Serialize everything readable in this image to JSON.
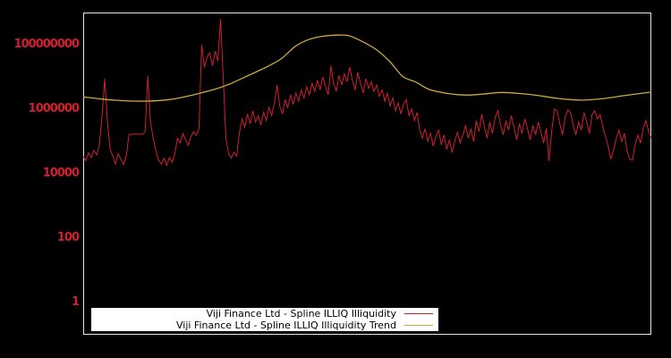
{
  "colors": {
    "background": "#000000",
    "plot_border": "#e6e6e6",
    "series_red": "#d0202f",
    "series_gold": "#cfa93d",
    "tick_label": "#d0202f",
    "legend_background": "#ffffff",
    "legend_text": "#000000"
  },
  "legend": {
    "items": [
      {
        "label": "Viji Finance Ltd - Spline ILLIQ Illiquidity",
        "color": "#d0202f"
      },
      {
        "label": "Viji Finance Ltd - Spline ILLIQ Illiquidity Trend",
        "color": "#cfa93d"
      }
    ]
  },
  "chart_data": {
    "type": "line",
    "title": "",
    "xlabel": "",
    "ylabel": "",
    "grid": false,
    "legend_position": "bottom-center",
    "yaxis": {
      "scale": "log10",
      "ylim": [
        0.1,
        1000000000
      ],
      "ticks": [
        {
          "label": "100000000",
          "value": 100000000
        },
        {
          "label": "1000000",
          "value": 1000000
        },
        {
          "label": "10000",
          "value": 10000
        },
        {
          "label": "100",
          "value": 100
        },
        {
          "label": "1",
          "value": 1
        }
      ]
    },
    "xaxis": {
      "labels": "none",
      "spacing": "uniform"
    },
    "series": [
      {
        "name": "Viji Finance Ltd - Spline ILLIQ Illiquidity",
        "color": "#d0202f",
        "style": "jagged-line",
        "value_encoding": "log10",
        "log10_values": [
          4.53,
          4.4,
          4.65,
          4.5,
          4.72,
          4.58,
          4.9,
          5.8,
          6.94,
          5.6,
          4.75,
          4.55,
          4.3,
          4.62,
          4.45,
          4.28,
          4.55,
          5.22,
          5.22,
          5.23,
          5.22,
          5.23,
          5.22,
          5.3,
          7.03,
          5.6,
          5.1,
          4.7,
          4.42,
          4.3,
          4.48,
          4.25,
          4.5,
          4.35,
          4.6,
          5.1,
          4.95,
          5.25,
          5.05,
          4.88,
          5.15,
          5.3,
          5.18,
          5.4,
          8.0,
          7.3,
          7.62,
          7.75,
          7.35,
          7.8,
          7.5,
          8.8,
          7.0,
          5.1,
          4.62,
          4.48,
          4.66,
          4.55,
          5.25,
          5.7,
          5.45,
          5.85,
          5.55,
          5.95,
          5.6,
          5.8,
          5.5,
          5.9,
          5.65,
          6.05,
          5.8,
          6.2,
          6.75,
          6.1,
          5.85,
          6.3,
          6.05,
          6.45,
          6.15,
          6.5,
          6.25,
          6.6,
          6.35,
          6.7,
          6.45,
          6.8,
          6.55,
          6.9,
          6.6,
          7.0,
          6.7,
          6.45,
          7.35,
          6.8,
          6.55,
          7.05,
          6.75,
          7.1,
          6.85,
          7.3,
          6.9,
          6.6,
          7.15,
          6.8,
          6.5,
          6.95,
          6.65,
          6.85,
          6.55,
          6.75,
          6.4,
          6.6,
          6.25,
          6.5,
          6.1,
          6.35,
          5.95,
          6.2,
          5.85,
          6.15,
          6.3,
          5.8,
          6.0,
          5.65,
          5.9,
          5.35,
          5.1,
          5.4,
          5.0,
          5.25,
          4.85,
          5.15,
          5.35,
          4.9,
          5.2,
          4.75,
          5.05,
          4.65,
          5.0,
          5.3,
          4.95,
          5.2,
          5.5,
          5.1,
          5.4,
          5.0,
          5.65,
          5.3,
          5.85,
          5.45,
          5.1,
          5.6,
          5.25,
          5.75,
          5.95,
          5.5,
          5.2,
          5.65,
          5.35,
          5.8,
          5.45,
          5.05,
          5.55,
          5.25,
          5.7,
          5.4,
          5.05,
          5.5,
          5.2,
          5.6,
          5.3,
          4.95,
          5.4,
          4.4,
          5.3,
          6.0,
          5.95,
          5.55,
          5.2,
          5.75,
          5.98,
          5.9,
          5.5,
          5.2,
          5.6,
          5.35,
          5.9,
          5.6,
          5.25,
          5.83,
          5.95,
          5.7,
          5.83,
          5.45,
          5.15,
          4.85,
          4.45,
          4.75,
          5.1,
          5.35,
          5.0,
          5.25,
          4.7,
          4.45,
          4.42,
          4.9,
          5.2,
          4.95,
          5.4,
          5.65,
          5.3,
          5.1
        ]
      },
      {
        "name": "Viji Finance Ltd - Spline ILLIQ Illiquidity Trend",
        "color": "#cfa93d",
        "style": "smooth-spline",
        "value_encoding": "log10",
        "points": [
          {
            "x_frac": 0.0,
            "log10": 6.38
          },
          {
            "x_frac": 0.0346,
            "log10": 6.31
          },
          {
            "x_frac": 0.074,
            "log10": 6.26
          },
          {
            "x_frac": 0.1134,
            "log10": 6.25
          },
          {
            "x_frac": 0.1528,
            "log10": 6.3
          },
          {
            "x_frac": 0.1921,
            "log10": 6.44
          },
          {
            "x_frac": 0.2315,
            "log10": 6.62
          },
          {
            "x_frac": 0.2551,
            "log10": 6.76
          },
          {
            "x_frac": 0.2787,
            "log10": 6.95
          },
          {
            "x_frac": 0.3024,
            "log10": 7.14
          },
          {
            "x_frac": 0.326,
            "log10": 7.34
          },
          {
            "x_frac": 0.3496,
            "log10": 7.58
          },
          {
            "x_frac": 0.3732,
            "log10": 7.95
          },
          {
            "x_frac": 0.3969,
            "log10": 8.16
          },
          {
            "x_frac": 0.4205,
            "log10": 8.26
          },
          {
            "x_frac": 0.4488,
            "log10": 8.3
          },
          {
            "x_frac": 0.4677,
            "log10": 8.28
          },
          {
            "x_frac": 0.4913,
            "log10": 8.1
          },
          {
            "x_frac": 0.515,
            "log10": 7.86
          },
          {
            "x_frac": 0.5386,
            "log10": 7.5
          },
          {
            "x_frac": 0.5622,
            "log10": 7.02
          },
          {
            "x_frac": 0.5858,
            "log10": 6.84
          },
          {
            "x_frac": 0.6094,
            "log10": 6.61
          },
          {
            "x_frac": 0.6409,
            "log10": 6.49
          },
          {
            "x_frac": 0.6724,
            "log10": 6.44
          },
          {
            "x_frac": 0.7039,
            "log10": 6.47
          },
          {
            "x_frac": 0.7354,
            "log10": 6.52
          },
          {
            "x_frac": 0.7669,
            "log10": 6.49
          },
          {
            "x_frac": 0.7984,
            "log10": 6.43
          },
          {
            "x_frac": 0.8378,
            "log10": 6.33
          },
          {
            "x_frac": 0.8772,
            "log10": 6.28
          },
          {
            "x_frac": 0.9165,
            "log10": 6.33
          },
          {
            "x_frac": 0.9559,
            "log10": 6.43
          },
          {
            "x_frac": 1.0,
            "log10": 6.53
          }
        ]
      }
    ]
  }
}
